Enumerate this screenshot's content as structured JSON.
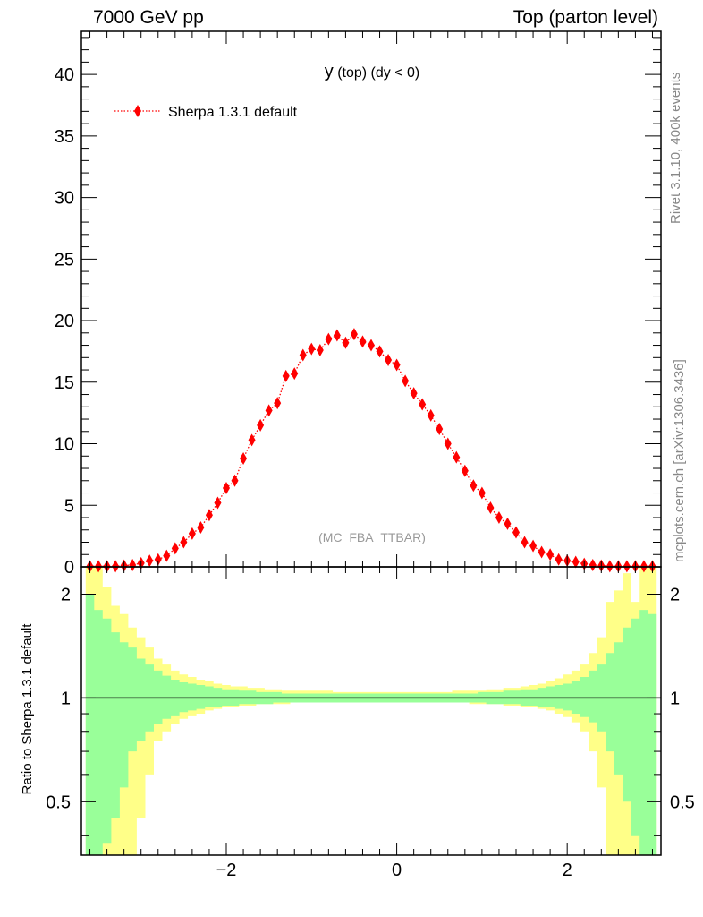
{
  "header": {
    "left": "7000 GeV pp",
    "right": "Top (parton level)"
  },
  "side_labels": {
    "rivet": "Rivet 3.1.10,  400k events",
    "mcplots": "mcplots.cern.ch [arXiv:1306.3436]"
  },
  "colors": {
    "marker": "#ff0000",
    "band_inner": "#99ff99",
    "band_outer": "#ffff88",
    "axis": "#000000",
    "side_text": "#888888"
  },
  "chart_data": [
    {
      "type": "scatter",
      "panel": "main",
      "title": "y",
      "title_suffix": " (top) (dy < 0)",
      "watermark": "(MC_FBA_TTBAR)",
      "xlim": [
        -3.7,
        3.1
      ],
      "ylim": [
        0,
        43.5
      ],
      "yticks": [
        0,
        5,
        10,
        15,
        20,
        25,
        30,
        35,
        40
      ],
      "legend_position": "top-left",
      "series": [
        {
          "name": "Sherpa 1.3.1 default",
          "style": "red dotted line with diamond markers",
          "x": [
            -3.6,
            -3.5,
            -3.4,
            -3.3,
            -3.2,
            -3.1,
            -3.0,
            -2.9,
            -2.8,
            -2.7,
            -2.6,
            -2.5,
            -2.4,
            -2.3,
            -2.2,
            -2.1,
            -2.0,
            -1.9,
            -1.8,
            -1.7,
            -1.6,
            -1.5,
            -1.4,
            -1.3,
            -1.2,
            -1.1,
            -1.0,
            -0.9,
            -0.8,
            -0.7,
            -0.6,
            -0.5,
            -0.4,
            -0.3,
            -0.2,
            -0.1,
            0.0,
            0.1,
            0.2,
            0.3,
            0.4,
            0.5,
            0.6,
            0.7,
            0.8,
            0.9,
            1.0,
            1.1,
            1.2,
            1.3,
            1.4,
            1.5,
            1.6,
            1.7,
            1.8,
            1.9,
            2.0,
            2.1,
            2.2,
            2.3,
            2.4,
            2.5,
            2.6,
            2.7,
            2.8,
            2.9,
            3.0
          ],
          "values": [
            0.05,
            0.05,
            0.05,
            0.05,
            0.1,
            0.15,
            0.3,
            0.5,
            0.6,
            0.9,
            1.5,
            2.0,
            2.7,
            3.2,
            4.2,
            5.2,
            6.4,
            7.0,
            8.8,
            10.3,
            11.5,
            12.7,
            13.3,
            15.5,
            15.7,
            17.2,
            17.7,
            17.6,
            18.5,
            18.8,
            18.2,
            18.9,
            18.3,
            18.0,
            17.5,
            16.8,
            16.4,
            15.1,
            14.1,
            13.2,
            12.3,
            11.2,
            10.0,
            8.9,
            7.8,
            6.6,
            6.0,
            4.8,
            4.0,
            3.5,
            2.8,
            2.0,
            1.7,
            1.2,
            1.0,
            0.6,
            0.5,
            0.4,
            0.25,
            0.15,
            0.1,
            0.05,
            0.05,
            0.05,
            0.05,
            0.05,
            0.05
          ]
        }
      ]
    },
    {
      "type": "area",
      "panel": "ratio",
      "ylabel": "Ratio to Sherpa 1.3.1 default",
      "xlim": [
        -3.7,
        3.1
      ],
      "ylim": [
        0.35,
        2.4
      ],
      "yscale": "log",
      "xticks": [
        -2,
        0,
        2
      ],
      "xtick_labels": [
        "−2",
        "0",
        "2"
      ],
      "yticks": [
        0.5,
        1,
        2
      ],
      "ytick_labels": [
        "0.5",
        "1",
        "2"
      ],
      "reference_line": 1,
      "bin_edges": [
        -3.65,
        -3.55,
        -3.45,
        -3.35,
        -3.25,
        -3.15,
        -3.05,
        -2.95,
        -2.85,
        -2.75,
        -2.65,
        -2.55,
        -2.45,
        -2.35,
        -2.25,
        -2.15,
        -2.05,
        -1.95,
        -1.85,
        -1.75,
        -1.65,
        -1.55,
        -1.45,
        -1.35,
        -1.25,
        -1.15,
        -1.05,
        -0.95,
        -0.85,
        -0.75,
        -0.65,
        -0.55,
        -0.45,
        -0.35,
        -0.25,
        -0.15,
        -0.05,
        0.05,
        0.15,
        0.25,
        0.35,
        0.45,
        0.55,
        0.65,
        0.75,
        0.85,
        0.95,
        1.05,
        1.15,
        1.25,
        1.35,
        1.45,
        1.55,
        1.65,
        1.75,
        1.85,
        1.95,
        2.05,
        2.15,
        2.25,
        2.35,
        2.45,
        2.55,
        2.65,
        2.75,
        2.85,
        2.95,
        3.05
      ],
      "inner_up": [
        2.0,
        1.8,
        1.7,
        1.55,
        1.45,
        1.4,
        1.3,
        1.25,
        1.2,
        1.16,
        1.13,
        1.11,
        1.1,
        1.09,
        1.08,
        1.07,
        1.06,
        1.06,
        1.05,
        1.05,
        1.04,
        1.04,
        1.04,
        1.03,
        1.03,
        1.03,
        1.03,
        1.03,
        1.03,
        1.03,
        1.03,
        1.03,
        1.03,
        1.03,
        1.03,
        1.03,
        1.03,
        1.03,
        1.03,
        1.03,
        1.03,
        1.03,
        1.03,
        1.03,
        1.03,
        1.03,
        1.04,
        1.04,
        1.04,
        1.05,
        1.05,
        1.06,
        1.06,
        1.07,
        1.08,
        1.09,
        1.1,
        1.12,
        1.15,
        1.2,
        1.25,
        1.35,
        1.45,
        1.6,
        1.7,
        1.8,
        1.75
      ],
      "inner_down": [
        0.35,
        0.35,
        0.38,
        0.45,
        0.55,
        0.7,
        0.75,
        0.8,
        0.84,
        0.87,
        0.89,
        0.91,
        0.92,
        0.93,
        0.94,
        0.94,
        0.95,
        0.95,
        0.96,
        0.96,
        0.96,
        0.96,
        0.97,
        0.97,
        0.97,
        0.97,
        0.97,
        0.97,
        0.97,
        0.97,
        0.97,
        0.97,
        0.97,
        0.97,
        0.97,
        0.97,
        0.97,
        0.97,
        0.97,
        0.97,
        0.97,
        0.97,
        0.97,
        0.97,
        0.97,
        0.97,
        0.97,
        0.96,
        0.96,
        0.96,
        0.96,
        0.95,
        0.95,
        0.94,
        0.94,
        0.93,
        0.92,
        0.9,
        0.88,
        0.85,
        0.8,
        0.7,
        0.6,
        0.5,
        0.4,
        0.35,
        0.35
      ],
      "outer_up": [
        2.4,
        2.4,
        2.1,
        1.85,
        1.75,
        1.6,
        1.5,
        1.4,
        1.3,
        1.25,
        1.2,
        1.17,
        1.15,
        1.13,
        1.12,
        1.1,
        1.09,
        1.08,
        1.08,
        1.07,
        1.07,
        1.06,
        1.06,
        1.05,
        1.05,
        1.05,
        1.05,
        1.05,
        1.05,
        1.04,
        1.04,
        1.04,
        1.04,
        1.04,
        1.04,
        1.04,
        1.04,
        1.04,
        1.04,
        1.04,
        1.04,
        1.04,
        1.04,
        1.05,
        1.05,
        1.05,
        1.05,
        1.06,
        1.06,
        1.07,
        1.07,
        1.08,
        1.09,
        1.1,
        1.12,
        1.14,
        1.17,
        1.2,
        1.25,
        1.35,
        1.5,
        1.9,
        2.05,
        2.3,
        1.9,
        2.4,
        2.4
      ],
      "outer_down": [
        0.35,
        0.35,
        0.35,
        0.35,
        0.35,
        0.35,
        0.45,
        0.6,
        0.75,
        0.8,
        0.84,
        0.87,
        0.89,
        0.9,
        0.92,
        0.93,
        0.94,
        0.94,
        0.95,
        0.95,
        0.96,
        0.96,
        0.96,
        0.96,
        0.97,
        0.97,
        0.97,
        0.97,
        0.97,
        0.97,
        0.97,
        0.97,
        0.97,
        0.97,
        0.97,
        0.97,
        0.97,
        0.97,
        0.97,
        0.97,
        0.97,
        0.97,
        0.97,
        0.97,
        0.97,
        0.96,
        0.96,
        0.96,
        0.96,
        0.95,
        0.95,
        0.94,
        0.94,
        0.93,
        0.92,
        0.9,
        0.88,
        0.85,
        0.8,
        0.7,
        0.55,
        0.35,
        0.35,
        0.35,
        0.35,
        0.35,
        0.35
      ]
    }
  ]
}
